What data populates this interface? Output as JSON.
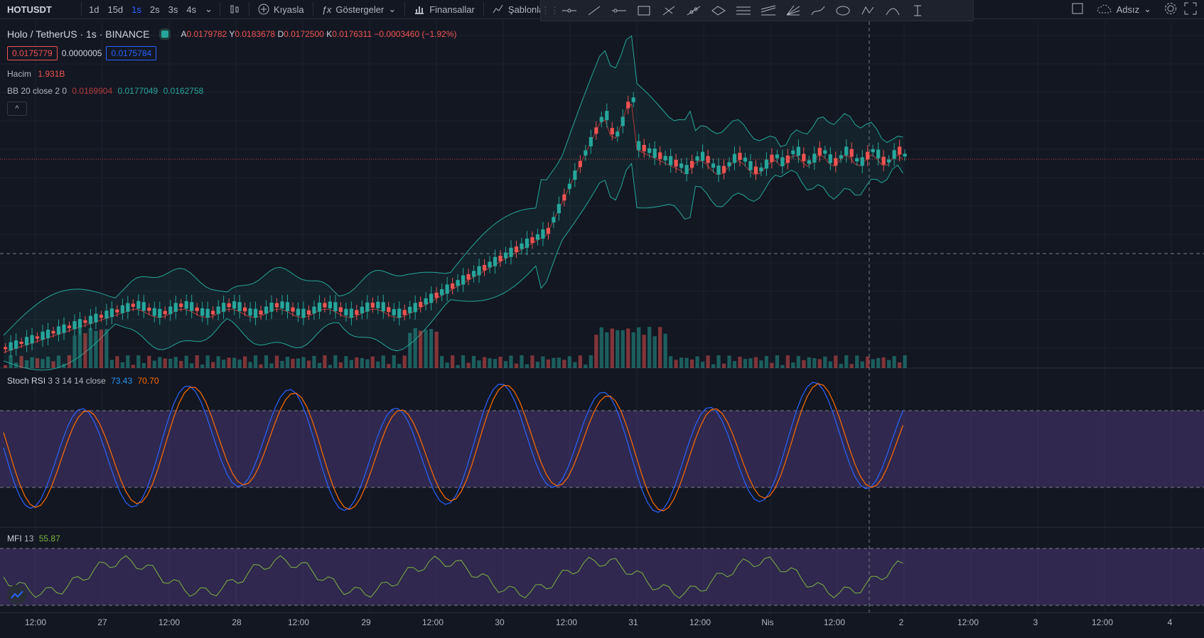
{
  "topbar": {
    "symbol": "HOTUSDT",
    "timeframes": [
      "1d",
      "15d",
      "1s",
      "2s",
      "3s",
      "4s"
    ],
    "active_timeframe": "1s",
    "compare_label": "Kıyasla",
    "indicators_label": "Göstergeler",
    "financials_label": "Finansallar",
    "templates_label": "Şablonla",
    "layout_name": "Adsız"
  },
  "legend": {
    "pair": "Holo / TetherUS · 1s · BINANCE",
    "open_label": "A",
    "open": "0.0179782",
    "high_label": "Y",
    "high": "0.0183678",
    "low_label": "D",
    "low": "0.0172500",
    "close_label": "K",
    "close": "0.0176311",
    "change": "−0.0003460 (−1.92%)",
    "bid": "0.0175779",
    "spread": "0.0000005",
    "ask": "0.0175784"
  },
  "volume": {
    "label": "Hacim",
    "value": "1.931B"
  },
  "bb": {
    "label": "BB 20 close 2 0",
    "basis": "0.0169904",
    "upper": "0.0177049",
    "lower": "0.0162758"
  },
  "stoch": {
    "label": "Stoch RSI",
    "params": "3 3 14 14 close",
    "k": "73.43",
    "d": "70.70"
  },
  "mfi": {
    "label": "MFI",
    "params": "13",
    "value": "55.87"
  },
  "time_axis": [
    "12:00",
    "27",
    "12:00",
    "28",
    "12:00",
    "29",
    "12:00",
    "30",
    "12:00",
    "31",
    "12:00",
    "Nis",
    "12:00",
    "2",
    "12:00",
    "3",
    "12:00",
    "4"
  ],
  "colors": {
    "up": "#26a69a",
    "down": "#ef5350",
    "stoch_k": "#2962ff",
    "stoch_d": "#ff6d00",
    "mfi": "#7cb342",
    "band": "#7e57c2"
  }
}
